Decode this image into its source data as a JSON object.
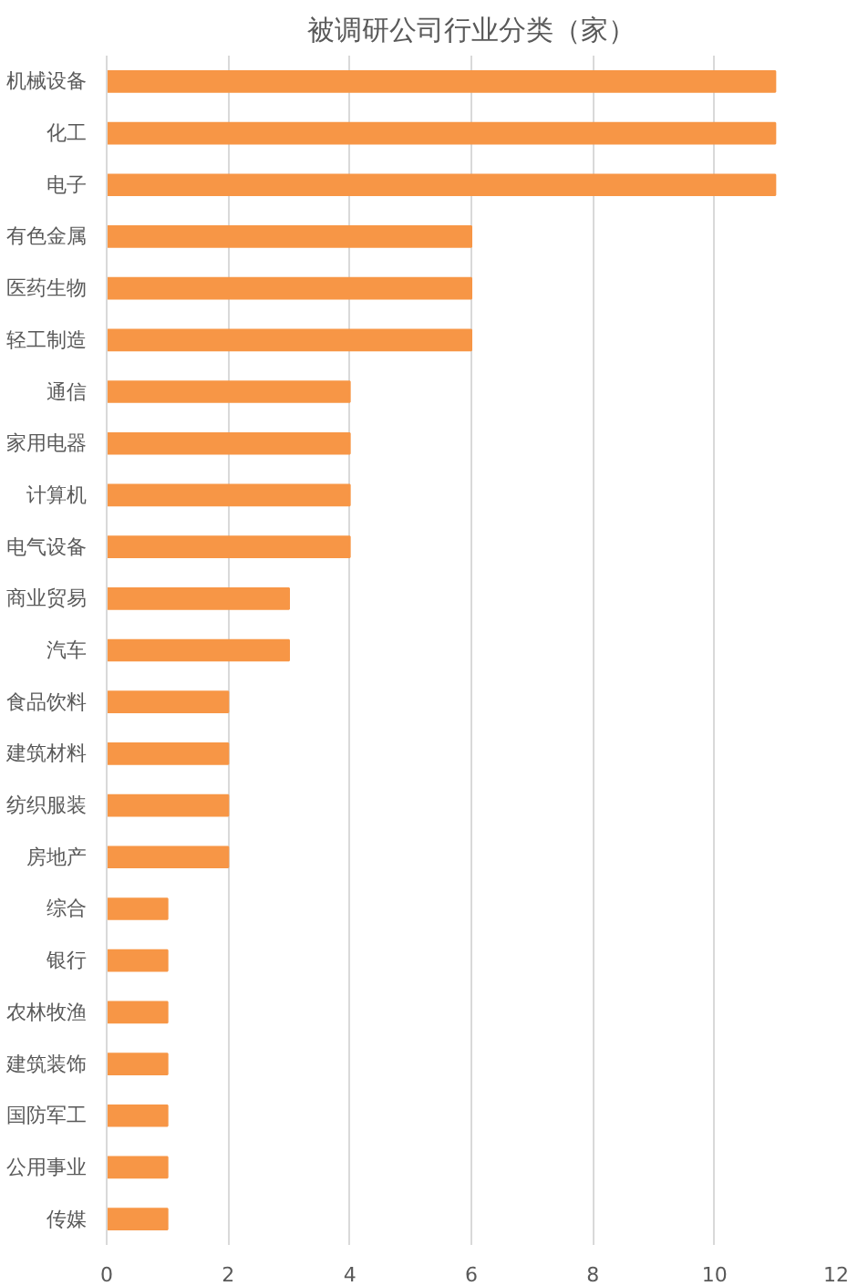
{
  "chart_data": {
    "type": "bar",
    "orientation": "horizontal",
    "title": "被调研公司行业分类（家）",
    "categories": [
      "机械设备",
      "化工",
      "电子",
      "有色金属",
      "医药生物",
      "轻工制造",
      "通信",
      "家用电器",
      "计算机",
      "电气设备",
      "商业贸易",
      "汽车",
      "食品饮料",
      "建筑材料",
      "纺织服装",
      "房地产",
      "综合",
      "银行",
      "农林牧渔",
      "建筑装饰",
      "国防军工",
      "公用事业",
      "传媒"
    ],
    "values": [
      11,
      11,
      11,
      6,
      6,
      6,
      4,
      4,
      4,
      4,
      3,
      3,
      2,
      2,
      2,
      2,
      1,
      1,
      1,
      1,
      1,
      1,
      1
    ],
    "color": "#f79646",
    "xlim": [
      0,
      12
    ],
    "xticks": [
      0,
      2,
      4,
      6,
      8,
      10,
      12
    ],
    "grid": "x"
  }
}
